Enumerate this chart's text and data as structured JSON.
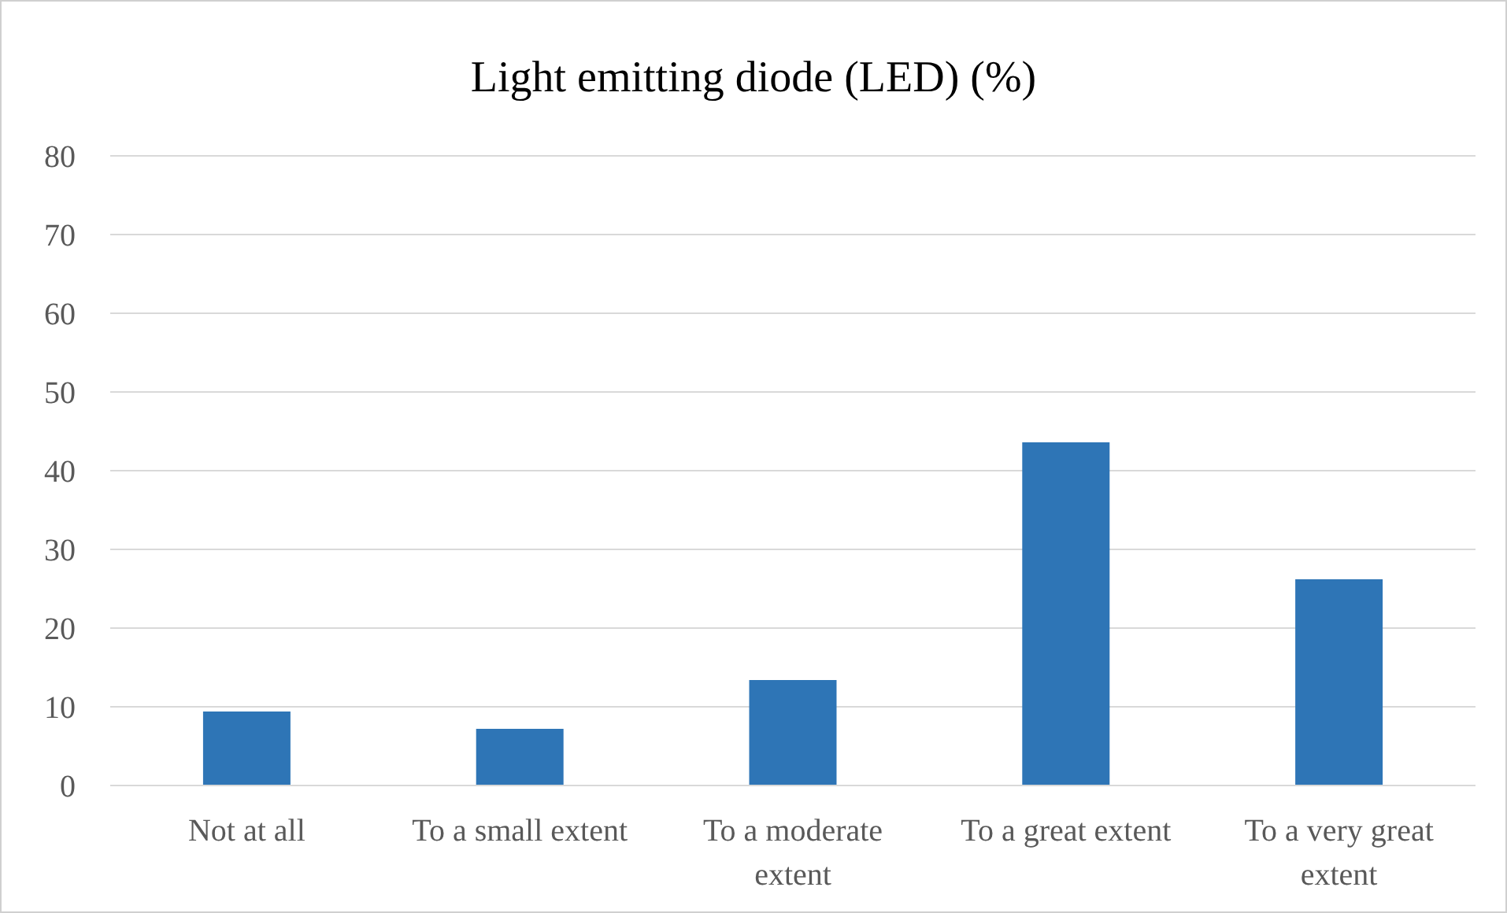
{
  "chart_data": {
    "type": "bar",
    "title": "Light emitting diode (LED) (%)",
    "categories": [
      "Not at all",
      "To a small extent",
      "To a moderate extent",
      "To a great extent",
      "To a very great extent"
    ],
    "values": [
      9.4,
      7.2,
      13.4,
      43.6,
      26.2
    ],
    "color": "#2e75b6",
    "ylim": [
      0,
      80
    ],
    "yticks": [
      0,
      10,
      20,
      30,
      40,
      50,
      60,
      70,
      80
    ],
    "grid": "y"
  }
}
